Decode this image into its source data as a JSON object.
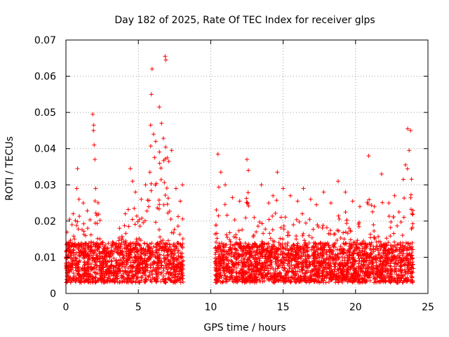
{
  "chart_data": {
    "type": "scatter",
    "title": "Day 182 of 2025, Rate Of TEC Index for receiver glps",
    "xlabel": "GPS time / hours",
    "ylabel": "ROTI / TECUs",
    "xlim": [
      0,
      25
    ],
    "ylim": [
      0,
      0.07
    ],
    "xticks": [
      0,
      5,
      10,
      15,
      20,
      25
    ],
    "yticks": [
      0,
      0.01,
      0.02,
      0.03,
      0.04,
      0.05,
      0.06,
      0.07
    ],
    "xtick_labels": [
      "0",
      "5",
      "10",
      "15",
      "20",
      "25"
    ],
    "ytick_labels": [
      "0",
      "0.01",
      "0.02",
      "0.03",
      "0.04",
      "0.05",
      "0.06",
      "0.07"
    ],
    "grid": true,
    "marker": "+",
    "color": "#ff0000",
    "segments": [
      {
        "start": 0.0,
        "end": 8.1
      },
      {
        "start": 10.3,
        "end": 24.0
      }
    ],
    "series": [
      {
        "name": "ROTI",
        "points": [
          [
            0.05,
            0.0135
          ],
          [
            0.25,
            0.0205
          ],
          [
            0.5,
            0.022
          ],
          [
            0.75,
            0.029
          ],
          [
            0.8,
            0.0345
          ],
          [
            0.9,
            0.026
          ],
          [
            1.2,
            0.025
          ],
          [
            1.5,
            0.018
          ],
          [
            1.85,
            0.0495
          ],
          [
            1.9,
            0.045
          ],
          [
            1.95,
            0.041
          ],
          [
            1.92,
            0.0465
          ],
          [
            2.0,
            0.037
          ],
          [
            2.05,
            0.029
          ],
          [
            2.5,
            0.014
          ],
          [
            3.2,
            0.0135
          ],
          [
            3.7,
            0.018
          ],
          [
            4.1,
            0.022
          ],
          [
            4.45,
            0.0345
          ],
          [
            4.6,
            0.031
          ],
          [
            4.8,
            0.028
          ],
          [
            5.2,
            0.026
          ],
          [
            5.5,
            0.03
          ],
          [
            5.8,
            0.0335
          ],
          [
            5.85,
            0.0465
          ],
          [
            5.9,
            0.055
          ],
          [
            5.95,
            0.062
          ],
          [
            6.05,
            0.044
          ],
          [
            6.2,
            0.042
          ],
          [
            6.45,
            0.0515
          ],
          [
            6.6,
            0.047
          ],
          [
            6.85,
            0.0655
          ],
          [
            6.9,
            0.0645
          ],
          [
            7.1,
            0.0365
          ],
          [
            7.3,
            0.0395
          ],
          [
            7.6,
            0.029
          ],
          [
            7.9,
            0.0255
          ],
          [
            8.05,
            0.03
          ],
          [
            10.5,
            0.0385
          ],
          [
            10.7,
            0.0335
          ],
          [
            11.0,
            0.03
          ],
          [
            11.5,
            0.0265
          ],
          [
            12.0,
            0.0255
          ],
          [
            12.5,
            0.037
          ],
          [
            12.6,
            0.034
          ],
          [
            13.0,
            0.021
          ],
          [
            13.5,
            0.03
          ],
          [
            14.0,
            0.025
          ],
          [
            14.3,
            0.027
          ],
          [
            14.6,
            0.0335
          ],
          [
            15.0,
            0.029
          ],
          [
            15.5,
            0.027
          ],
          [
            16.0,
            0.0255
          ],
          [
            16.4,
            0.029
          ],
          [
            16.9,
            0.026
          ],
          [
            17.3,
            0.0245
          ],
          [
            17.8,
            0.028
          ],
          [
            18.3,
            0.025
          ],
          [
            18.8,
            0.031
          ],
          [
            19.3,
            0.028
          ],
          [
            19.8,
            0.0255
          ],
          [
            20.3,
            0.024
          ],
          [
            20.9,
            0.038
          ],
          [
            21.3,
            0.024
          ],
          [
            21.8,
            0.033
          ],
          [
            22.3,
            0.025
          ],
          [
            22.7,
            0.027
          ],
          [
            23.0,
            0.0225
          ],
          [
            23.3,
            0.0315
          ],
          [
            23.45,
            0.0355
          ],
          [
            23.6,
            0.0455
          ],
          [
            23.7,
            0.0395
          ],
          [
            23.8,
            0.045
          ],
          [
            23.9,
            0.022
          ]
        ],
        "baseline_band": [
          0.003,
          0.014
        ]
      }
    ]
  }
}
